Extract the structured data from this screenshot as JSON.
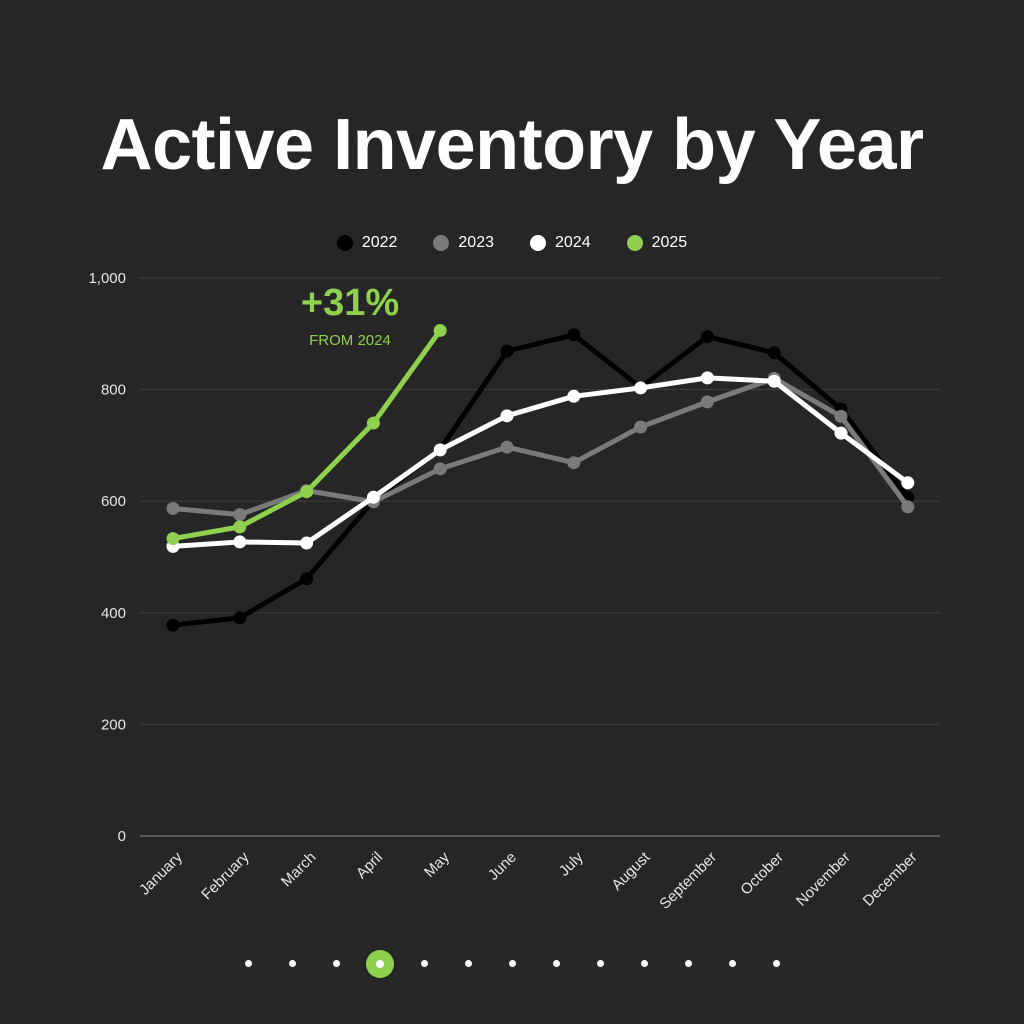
{
  "chart_data": {
    "type": "line",
    "title": "Active Inventory by Year",
    "categories": [
      "January",
      "February",
      "March",
      "April",
      "May",
      "June",
      "July",
      "August",
      "September",
      "October",
      "November",
      "December"
    ],
    "ylim": [
      0,
      1000
    ],
    "yticks": [
      0,
      200,
      400,
      600,
      800,
      1000
    ],
    "ytick_labels": [
      "0",
      "200",
      "400",
      "600",
      "800",
      "1,000"
    ],
    "grid": true,
    "legend_position": "top-center",
    "series": [
      {
        "name": "2022",
        "color": "#000000",
        "values": [
          378,
          391,
          461,
          601,
          693,
          869,
          898,
          804,
          895,
          866,
          765,
          607
        ]
      },
      {
        "name": "2023",
        "color": "#7a7a7a",
        "values": [
          587,
          576,
          619,
          599,
          658,
          697,
          669,
          733,
          778,
          820,
          752,
          590
        ]
      },
      {
        "name": "2024",
        "color": "#ffffff",
        "values": [
          519,
          527,
          525,
          607,
          692,
          753,
          788,
          803,
          821,
          815,
          722,
          633
        ]
      },
      {
        "name": "2025",
        "color": "#8fd14f",
        "values": [
          533,
          554,
          617,
          740,
          906,
          null,
          null,
          null,
          null,
          null,
          null,
          null
        ]
      }
    ],
    "annotation": {
      "value_text": "+31%",
      "sub_text": "FROM 2024"
    }
  },
  "pager": {
    "count": 13,
    "active_index": 3
  }
}
